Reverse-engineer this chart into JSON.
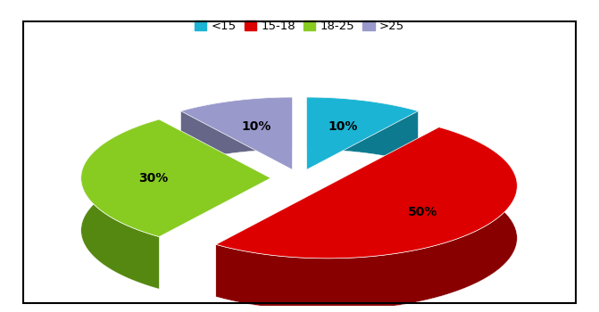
{
  "labels": [
    "<15",
    "15-18",
    "18-25",
    ">25"
  ],
  "values": [
    10,
    50,
    30,
    10
  ],
  "colors": [
    "#1BB4D4",
    "#DD0000",
    "#88CC22",
    "#9999CC"
  ],
  "dark_colors": [
    "#0E7A8F",
    "#880000",
    "#558811",
    "#666688"
  ],
  "pct_labels": [
    "10%",
    "50%",
    "30%",
    "10%"
  ],
  "startangle": 90,
  "depth": 0.18,
  "bg_color": "#FFFFFF",
  "legend_labels": [
    "<15",
    "15-18",
    "18-25",
    ">25"
  ],
  "legend_colors": [
    "#1BB4D4",
    "#DD0000",
    "#88CC22",
    "#9999CC"
  ],
  "explode": [
    0.04,
    0.06,
    0.05,
    0.04
  ]
}
